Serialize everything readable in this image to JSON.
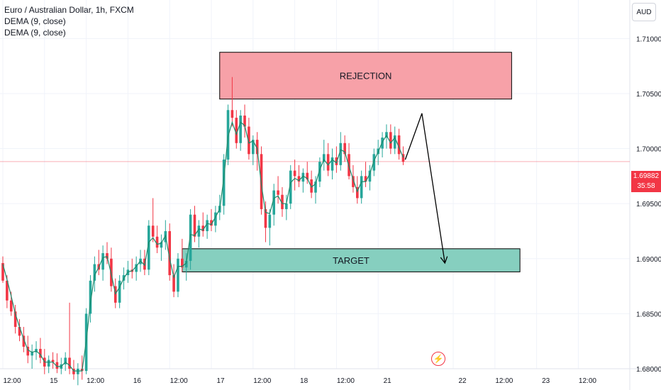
{
  "legend": {
    "symbol": "Euro / Australian Dollar, 1h, FXCM",
    "indicator1": "DEMA (9, close)",
    "indicator2": "DEMA (9, close)"
  },
  "currency_button": "AUD",
  "price_tag": {
    "price": "1.69882",
    "countdown": "35:58"
  },
  "icons": {
    "flash": "lightning-icon"
  },
  "colors": {
    "up": "#26a69a",
    "down": "#f23645",
    "dema": "#1b8a6b",
    "rejection_zone": "#f7a1a8",
    "target_zone": "#86cfbf",
    "current_price": "#f23645"
  },
  "chart_data": {
    "type": "candlestick",
    "ylim": [
      1.68,
      1.7135
    ],
    "y_ticks": [
      "1.71000",
      "1.70500",
      "1.70000",
      "1.69500",
      "1.69000",
      "1.68500",
      "1.68000"
    ],
    "y_tick_values": [
      1.71,
      1.705,
      1.7,
      1.695,
      1.69,
      1.685,
      1.68
    ],
    "x_ticks": [
      "12:00",
      "15",
      "12:00",
      "16",
      "12:00",
      "17",
      "12:00",
      "18",
      "12:00",
      "21",
      "22",
      "12:00",
      "23",
      "12:00"
    ],
    "x_tick_bars": [
      0,
      10,
      20,
      30,
      40,
      50,
      60,
      70,
      80,
      90,
      108,
      118,
      128,
      138
    ],
    "current_price": 1.69882,
    "candles": [
      [
        1.6896,
        1.6902,
        1.6878,
        1.688
      ],
      [
        1.688,
        1.6885,
        1.6855,
        1.6862
      ],
      [
        1.6862,
        1.687,
        1.6848,
        1.6852
      ],
      [
        1.6852,
        1.6858,
        1.6832,
        1.6838
      ],
      [
        1.6838,
        1.6845,
        1.6825,
        1.683
      ],
      [
        1.683,
        1.6838,
        1.6815,
        1.682
      ],
      [
        1.682,
        1.683,
        1.6805,
        1.6812
      ],
      [
        1.6812,
        1.6822,
        1.68,
        1.6815
      ],
      [
        1.6815,
        1.6825,
        1.6808,
        1.6818
      ],
      [
        1.6818,
        1.6828,
        1.6805,
        1.681
      ],
      [
        1.681,
        1.6818,
        1.6795,
        1.6802
      ],
      [
        1.6802,
        1.6812,
        1.6796,
        1.6808
      ],
      [
        1.6808,
        1.6815,
        1.68,
        1.6806
      ],
      [
        1.6806,
        1.6814,
        1.6796,
        1.68
      ],
      [
        1.68,
        1.681,
        1.6795,
        1.6804
      ],
      [
        1.6804,
        1.6815,
        1.6798,
        1.681
      ],
      [
        1.681,
        1.686,
        1.6795,
        1.68
      ],
      [
        1.68,
        1.6808,
        1.679,
        1.6795
      ],
      [
        1.6795,
        1.6805,
        1.6785,
        1.68
      ],
      [
        1.68,
        1.6812,
        1.679,
        1.6798
      ],
      [
        1.6798,
        1.6855,
        1.6795,
        1.685
      ],
      [
        1.685,
        1.6885,
        1.6842,
        1.688
      ],
      [
        1.688,
        1.6902,
        1.687,
        1.6895
      ],
      [
        1.6895,
        1.6908,
        1.6885,
        1.689
      ],
      [
        1.689,
        1.6912,
        1.688,
        1.6905
      ],
      [
        1.6905,
        1.6915,
        1.6895,
        1.69
      ],
      [
        1.69,
        1.691,
        1.687,
        1.6875
      ],
      [
        1.6875,
        1.6882,
        1.6855,
        1.686
      ],
      [
        1.686,
        1.6885,
        1.6855,
        1.688
      ],
      [
        1.688,
        1.6892,
        1.6872,
        1.6885
      ],
      [
        1.6885,
        1.6898,
        1.6878,
        1.689
      ],
      [
        1.689,
        1.69,
        1.6882,
        1.6888
      ],
      [
        1.6888,
        1.6902,
        1.688,
        1.6895
      ],
      [
        1.6895,
        1.6908,
        1.6888,
        1.69
      ],
      [
        1.69,
        1.6908,
        1.6885,
        1.689
      ],
      [
        1.689,
        1.6935,
        1.6885,
        1.693
      ],
      [
        1.693,
        1.6955,
        1.6915,
        1.692
      ],
      [
        1.692,
        1.693,
        1.6905,
        1.691
      ],
      [
        1.691,
        1.6922,
        1.6898,
        1.6915
      ],
      [
        1.6915,
        1.6935,
        1.6908,
        1.6925
      ],
      [
        1.6925,
        1.6932,
        1.688,
        1.6885
      ],
      [
        1.6885,
        1.6895,
        1.6865,
        1.687
      ],
      [
        1.687,
        1.6905,
        1.6865,
        1.69
      ],
      [
        1.69,
        1.6918,
        1.6888,
        1.6892
      ],
      [
        1.6892,
        1.6905,
        1.688,
        1.6898
      ],
      [
        1.6898,
        1.6945,
        1.689,
        1.694
      ],
      [
        1.694,
        1.6948,
        1.6915,
        1.692
      ],
      [
        1.692,
        1.6935,
        1.691,
        1.693
      ],
      [
        1.693,
        1.6942,
        1.692,
        1.6925
      ],
      [
        1.6925,
        1.694,
        1.6918,
        1.6935
      ],
      [
        1.6935,
        1.6945,
        1.6925,
        1.693
      ],
      [
        1.693,
        1.6948,
        1.6924,
        1.6942
      ],
      [
        1.6942,
        1.6958,
        1.6935,
        1.6948
      ],
      [
        1.6948,
        1.6995,
        1.694,
        1.699
      ],
      [
        1.699,
        1.704,
        1.6985,
        1.7035
      ],
      [
        1.7035,
        1.7065,
        1.702,
        1.7028
      ],
      [
        1.7028,
        1.7035,
        1.7,
        1.7005
      ],
      [
        1.7005,
        1.7035,
        1.6998,
        1.703
      ],
      [
        1.703,
        1.704,
        1.701,
        1.702
      ],
      [
        1.702,
        1.7028,
        1.699,
        1.6995
      ],
      [
        1.6995,
        1.7012,
        1.6985,
        1.7008
      ],
      [
        1.7008,
        1.7015,
        1.698,
        1.6995
      ],
      [
        1.6995,
        1.7002,
        1.694,
        1.6945
      ],
      [
        1.6945,
        1.6952,
        1.6915,
        1.6928
      ],
      [
        1.6928,
        1.6945,
        1.6912,
        1.694
      ],
      [
        1.694,
        1.6968,
        1.693,
        1.6962
      ],
      [
        1.6962,
        1.6975,
        1.695,
        1.6958
      ],
      [
        1.6958,
        1.6965,
        1.6938,
        1.6945
      ],
      [
        1.6945,
        1.6958,
        1.6935,
        1.695
      ],
      [
        1.695,
        1.6985,
        1.6945,
        1.698
      ],
      [
        1.698,
        1.699,
        1.6962,
        1.6975
      ],
      [
        1.6975,
        1.6985,
        1.6965,
        1.697
      ],
      [
        1.697,
        1.6982,
        1.696,
        1.6978
      ],
      [
        1.6978,
        1.6988,
        1.6968,
        1.6972
      ],
      [
        1.6972,
        1.698,
        1.6955,
        1.696
      ],
      [
        1.696,
        1.6975,
        1.695,
        1.697
      ],
      [
        1.697,
        1.6992,
        1.6965,
        1.6988
      ],
      [
        1.6988,
        1.7008,
        1.698,
        1.6995
      ],
      [
        1.6995,
        1.7005,
        1.6975,
        1.698
      ],
      [
        1.698,
        1.7,
        1.6972,
        1.6992
      ],
      [
        1.6992,
        1.7002,
        1.6978,
        1.6985
      ],
      [
        1.6985,
        1.7015,
        1.698,
        1.7005
      ],
      [
        1.7005,
        1.7012,
        1.6988,
        1.6995
      ],
      [
        1.6995,
        1.7005,
        1.6972,
        1.6975
      ],
      [
        1.6975,
        1.6985,
        1.696,
        1.6965
      ],
      [
        1.6965,
        1.6975,
        1.695,
        1.6955
      ],
      [
        1.6955,
        1.698,
        1.695,
        1.6975
      ],
      [
        1.6975,
        1.6988,
        1.6965,
        1.697
      ],
      [
        1.697,
        1.6985,
        1.6962,
        1.698
      ],
      [
        1.698,
        1.7,
        1.6975,
        1.6995
      ],
      [
        1.6995,
        1.7008,
        1.6985,
        1.7
      ],
      [
        1.7,
        1.7015,
        1.6992,
        1.701
      ],
      [
        1.701,
        1.7022,
        1.7,
        1.7015
      ],
      [
        1.7015,
        1.7022,
        1.6995,
        1.7
      ],
      [
        1.7,
        1.702,
        1.6995,
        1.7012
      ],
      [
        1.7012,
        1.7018,
        1.699,
        1.6995
      ],
      [
        1.6995,
        1.7002,
        1.6985,
        1.6988
      ]
    ],
    "dema": [
      1.6895,
      1.6881,
      1.6866,
      1.685,
      1.6838,
      1.6827,
      1.6817,
      1.6815,
      1.6816,
      1.6813,
      1.6806,
      1.6806,
      1.6806,
      1.6802,
      1.6802,
      1.6806,
      1.6803,
      1.6798,
      1.6798,
      1.6798,
      1.6825,
      1.686,
      1.6885,
      1.6892,
      1.6901,
      1.6902,
      1.6886,
      1.6868,
      1.6874,
      1.6882,
      1.6888,
      1.6889,
      1.6893,
      1.6898,
      1.6894,
      1.6915,
      1.6919,
      1.6913,
      1.6914,
      1.6921,
      1.69,
      1.6883,
      1.6893,
      1.6893,
      1.6896,
      1.6922,
      1.6921,
      1.6927,
      1.6926,
      1.6932,
      1.6931,
      1.6938,
      1.6945,
      1.6973,
      1.7011,
      1.7024,
      1.7013,
      1.7024,
      1.7021,
      1.7005,
      1.7007,
      1.7,
      1.6967,
      1.6942,
      1.6941,
      1.6955,
      1.6957,
      1.695,
      1.695,
      1.6969,
      1.6973,
      1.6971,
      1.6975,
      1.6973,
      1.6965,
      1.6968,
      1.6981,
      1.699,
      1.6985,
      1.699,
      1.6987,
      1.6999,
      1.6997,
      1.6984,
      1.6972,
      1.6961,
      1.697,
      1.697,
      1.6977,
      1.6989,
      1.6997,
      1.7006,
      1.7012,
      1.7005,
      1.701,
      1.7001,
      1.6992
    ],
    "annotations": [
      {
        "label": "REJECTION",
        "kind": "box",
        "bar_from": 52,
        "bar_to": 122,
        "y_from": 1.7045,
        "y_to": 1.70875
      },
      {
        "label": "TARGET",
        "kind": "box",
        "bar_from": 43,
        "bar_to": 124,
        "y_from": 1.6888,
        "y_to": 1.6909
      }
    ],
    "projection_path": [
      [
        96.5,
        1.699
      ],
      [
        100.5,
        1.7032
      ],
      [
        106,
        1.6896
      ]
    ]
  }
}
